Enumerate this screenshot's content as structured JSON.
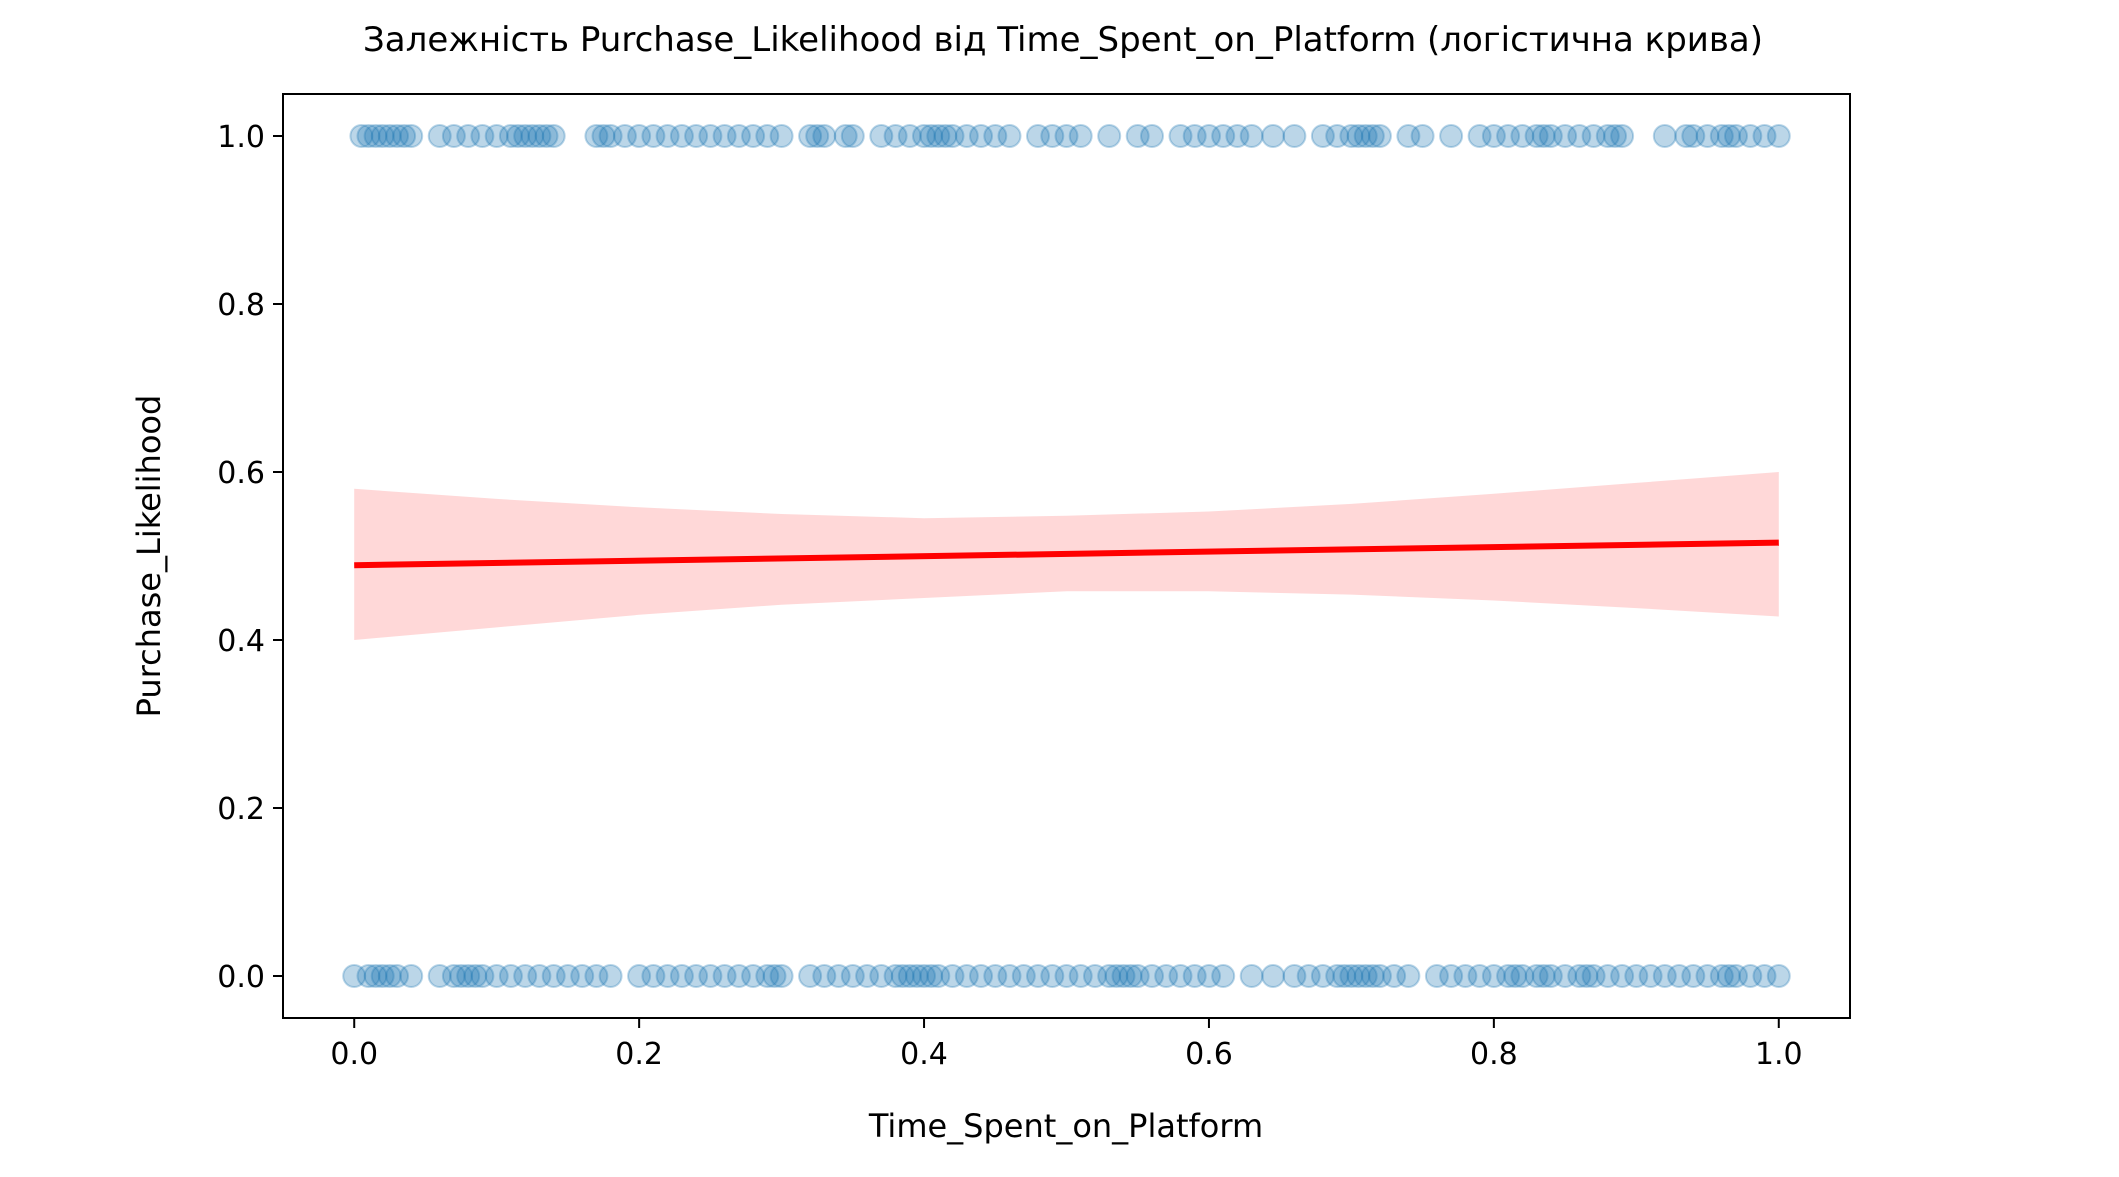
{
  "chart_data": {
    "type": "scatter",
    "title": "Залежність Purchase_Likelihood від Time_Spent_on_Platform (логістична крива)",
    "xlabel": "Time_Spent_on_Platform",
    "ylabel": "Purchase_Likelihood",
    "xlim": [
      -0.05,
      1.05
    ],
    "ylim": [
      -0.05,
      1.05
    ],
    "xticks": [
      0.0,
      0.2,
      0.4,
      0.6,
      0.8,
      1.0
    ],
    "xtick_labels": [
      "0.0",
      "0.2",
      "0.4",
      "0.6",
      "0.8",
      "1.0"
    ],
    "yticks": [
      0.0,
      0.2,
      0.4,
      0.6,
      0.8,
      1.0
    ],
    "ytick_labels": [
      "0.0",
      "0.2",
      "0.4",
      "0.6",
      "0.8",
      "1.0"
    ],
    "grid": false,
    "colors": {
      "points": "#1f77b4",
      "curve": "#ff0000",
      "band": "#ff9999"
    },
    "points_y1": [
      0.005,
      0.01,
      0.015,
      0.02,
      0.025,
      0.03,
      0.035,
      0.04,
      0.06,
      0.07,
      0.08,
      0.09,
      0.1,
      0.11,
      0.115,
      0.12,
      0.125,
      0.13,
      0.135,
      0.14,
      0.17,
      0.175,
      0.18,
      0.19,
      0.2,
      0.21,
      0.22,
      0.23,
      0.24,
      0.25,
      0.26,
      0.27,
      0.28,
      0.29,
      0.3,
      0.32,
      0.325,
      0.33,
      0.345,
      0.35,
      0.37,
      0.38,
      0.39,
      0.4,
      0.405,
      0.41,
      0.415,
      0.42,
      0.43,
      0.44,
      0.45,
      0.46,
      0.48,
      0.49,
      0.5,
      0.51,
      0.53,
      0.55,
      0.56,
      0.58,
      0.59,
      0.6,
      0.61,
      0.62,
      0.63,
      0.645,
      0.66,
      0.68,
      0.69,
      0.7,
      0.705,
      0.71,
      0.715,
      0.72,
      0.74,
      0.75,
      0.77,
      0.79,
      0.8,
      0.81,
      0.82,
      0.83,
      0.835,
      0.84,
      0.85,
      0.86,
      0.87,
      0.88,
      0.885,
      0.89,
      0.92,
      0.935,
      0.94,
      0.95,
      0.96,
      0.965,
      0.97,
      0.98,
      0.99,
      1.0
    ],
    "points_y0": [
      0.0,
      0.01,
      0.015,
      0.02,
      0.025,
      0.03,
      0.04,
      0.06,
      0.07,
      0.075,
      0.08,
      0.085,
      0.09,
      0.1,
      0.11,
      0.12,
      0.13,
      0.14,
      0.15,
      0.16,
      0.17,
      0.18,
      0.2,
      0.21,
      0.22,
      0.23,
      0.24,
      0.25,
      0.26,
      0.27,
      0.28,
      0.29,
      0.295,
      0.3,
      0.32,
      0.33,
      0.34,
      0.35,
      0.36,
      0.37,
      0.38,
      0.385,
      0.39,
      0.395,
      0.4,
      0.405,
      0.41,
      0.42,
      0.43,
      0.44,
      0.45,
      0.46,
      0.47,
      0.48,
      0.49,
      0.5,
      0.51,
      0.52,
      0.53,
      0.535,
      0.54,
      0.545,
      0.55,
      0.56,
      0.57,
      0.58,
      0.59,
      0.6,
      0.61,
      0.63,
      0.645,
      0.66,
      0.67,
      0.68,
      0.69,
      0.695,
      0.7,
      0.705,
      0.71,
      0.715,
      0.72,
      0.73,
      0.74,
      0.76,
      0.77,
      0.78,
      0.79,
      0.8,
      0.81,
      0.815,
      0.82,
      0.83,
      0.835,
      0.84,
      0.85,
      0.86,
      0.865,
      0.87,
      0.88,
      0.89,
      0.9,
      0.91,
      0.92,
      0.93,
      0.94,
      0.95,
      0.96,
      0.965,
      0.97,
      0.98,
      0.99,
      1.0
    ],
    "curve": {
      "x": [
        0.0,
        1.0
      ],
      "y": [
        0.489,
        0.516
      ]
    },
    "band": {
      "x": [
        0.0,
        0.1,
        0.2,
        0.3,
        0.4,
        0.5,
        0.6,
        0.7,
        0.8,
        0.9,
        1.0
      ],
      "upper": [
        0.58,
        0.568,
        0.558,
        0.55,
        0.545,
        0.548,
        0.553,
        0.562,
        0.574,
        0.587,
        0.6
      ],
      "lower": [
        0.4,
        0.415,
        0.43,
        0.442,
        0.45,
        0.458,
        0.458,
        0.454,
        0.447,
        0.438,
        0.428
      ]
    }
  }
}
